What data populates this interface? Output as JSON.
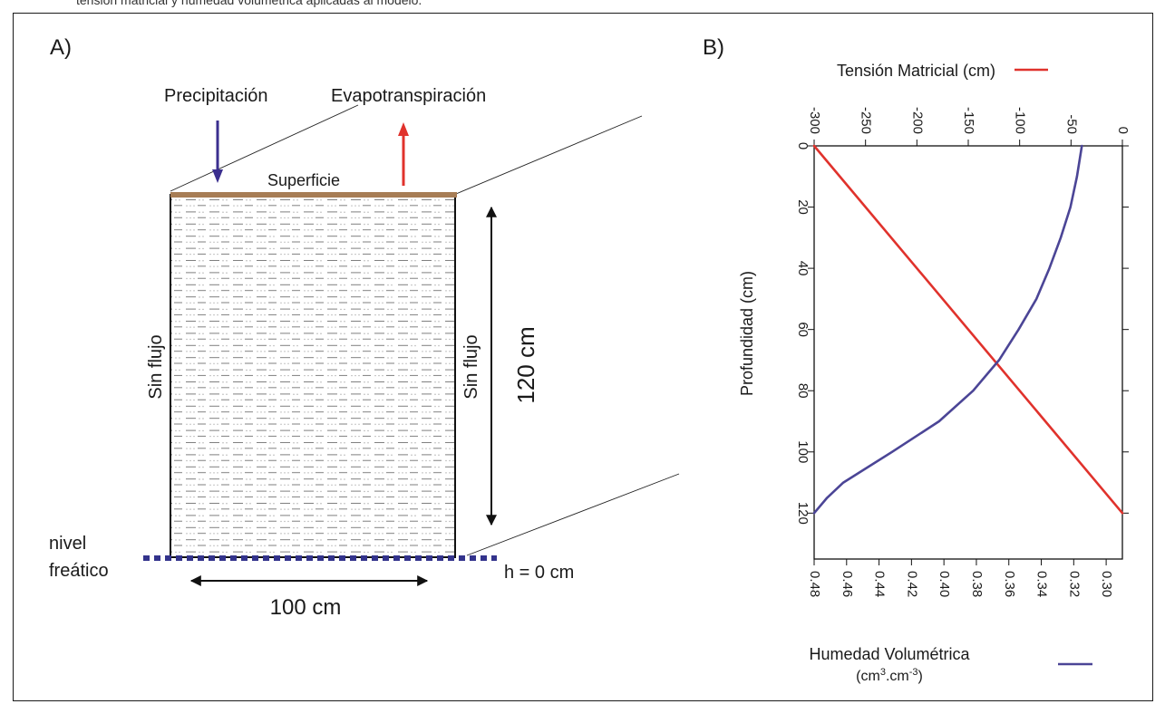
{
  "caption_fragment": "tensión matricial y humedad volumétrica aplicadas al modelo.",
  "panel_a": {
    "label": "A)",
    "precipitation": "Precipitación",
    "evapotranspiration": "Evapotranspiración",
    "surface": "Superficie",
    "no_flow_left": "Sin flujo",
    "no_flow_right": "Sin flujo",
    "depth_dimension": "120 cm",
    "width_dimension": "100 cm",
    "water_table_line1": "nivel",
    "water_table_line2": "freático",
    "boundary_condition": "h = 0 cm",
    "colors": {
      "precipitation_arrow": "#3b2f8f",
      "evapotranspiration_arrow": "#e0322c",
      "surface": "#a77d55",
      "water_table": "#33338c"
    }
  },
  "panel_b": {
    "label": "B)",
    "tension_legend": "Tensión Matricial (cm)",
    "moisture_legend_line1": "Humedad Volumétrica",
    "moisture_legend_line2": "(cm",
    "moisture_legend_sup1": "3",
    "moisture_legend_mid": ".cm",
    "moisture_legend_sup2": "-3",
    "moisture_legend_end": ")",
    "ylabel": "Profundidad (cm)"
  },
  "chart_data": {
    "type": "line",
    "ylabel": "Profundidad (cm)",
    "y_inverted": true,
    "y_ticks": [
      0,
      20,
      40,
      60,
      80,
      100,
      120
    ],
    "ylim": [
      0,
      135
    ],
    "top_axis": {
      "label": "Tensión Matricial (cm)",
      "lim": [
        -300,
        0
      ],
      "ticks": [
        -300,
        -250,
        -200,
        -150,
        -100,
        -50,
        0
      ]
    },
    "bottom_axis": {
      "label": "Humedad Volumétrica (cm3.cm-3)",
      "lim": [
        0.48,
        0.29
      ],
      "ticks": [
        0.48,
        0.46,
        0.44,
        0.42,
        0.4,
        0.38,
        0.36,
        0.34,
        0.32,
        0.3
      ]
    },
    "series": [
      {
        "name": "Tensión Matricial (cm)",
        "axis": "top",
        "color": "#e0322c",
        "points": [
          [
            -300,
            0
          ],
          [
            0,
            120
          ]
        ]
      },
      {
        "name": "Humedad Volumétrica",
        "axis": "bottom",
        "color": "#4b4596",
        "points": [
          [
            0.315,
            0
          ],
          [
            0.318,
            10
          ],
          [
            0.322,
            20
          ],
          [
            0.328,
            30
          ],
          [
            0.335,
            40
          ],
          [
            0.343,
            50
          ],
          [
            0.354,
            60
          ],
          [
            0.366,
            70
          ],
          [
            0.382,
            80
          ],
          [
            0.403,
            90
          ],
          [
            0.432,
            100
          ],
          [
            0.462,
            110
          ],
          [
            0.472,
            115
          ],
          [
            0.48,
            120
          ]
        ]
      }
    ]
  }
}
